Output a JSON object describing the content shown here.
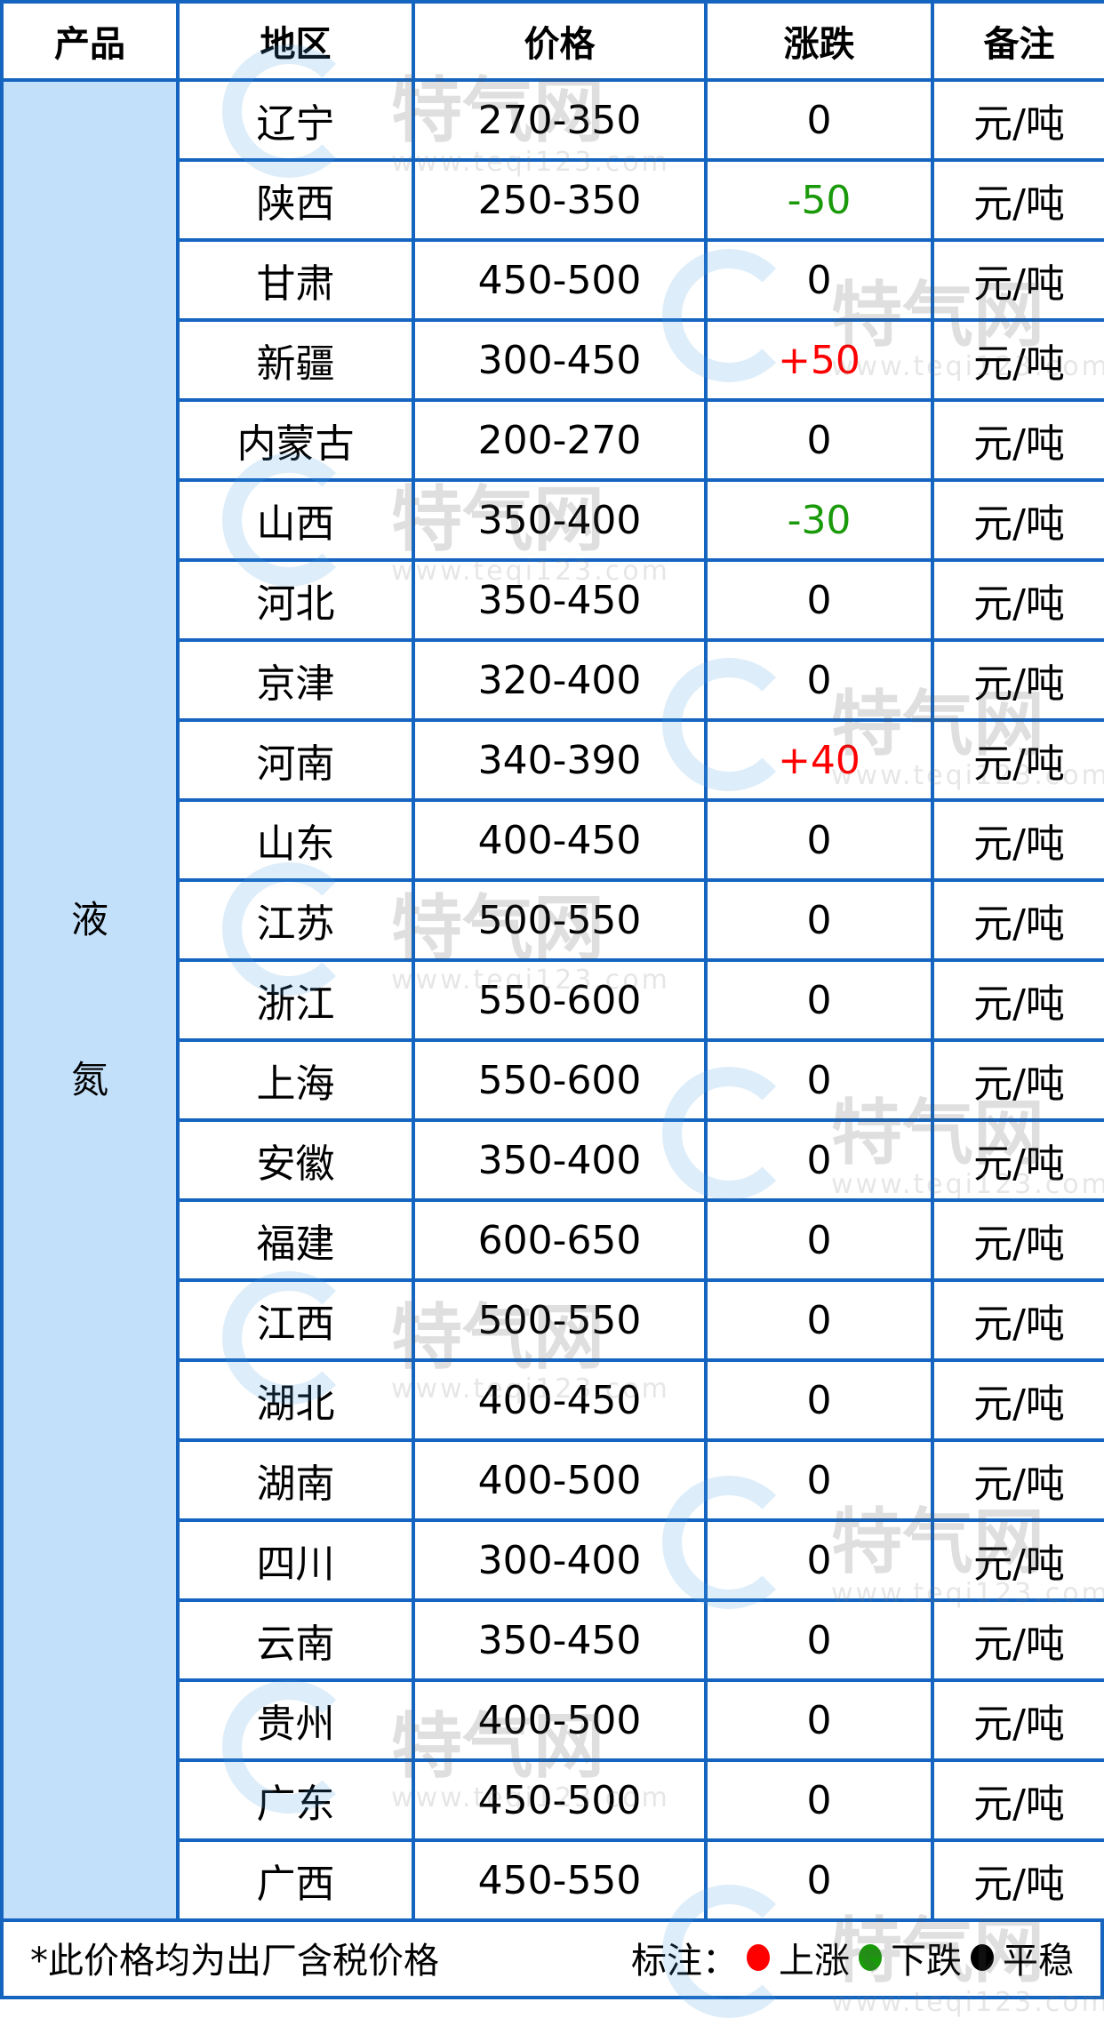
{
  "headers": [
    "产品",
    "地区",
    "价格",
    "涨跌",
    "备注"
  ],
  "product": [
    "液",
    "氮"
  ],
  "rows": [
    {
      "region": "辽宁",
      "price": "270-350",
      "change": "0",
      "note": "元/吨",
      "trend": "flat"
    },
    {
      "region": "陕西",
      "price": "250-350",
      "change": "-50",
      "note": "元/吨",
      "trend": "down"
    },
    {
      "region": "甘肃",
      "price": "450-500",
      "change": "0",
      "note": "元/吨",
      "trend": "flat"
    },
    {
      "region": "新疆",
      "price": "300-450",
      "change": "+50",
      "note": "元/吨",
      "trend": "up"
    },
    {
      "region": "内蒙古",
      "price": "200-270",
      "change": "0",
      "note": "元/吨",
      "trend": "flat"
    },
    {
      "region": "山西",
      "price": "350-400",
      "change": "-30",
      "note": "元/吨",
      "trend": "down"
    },
    {
      "region": "河北",
      "price": "350-450",
      "change": "0",
      "note": "元/吨",
      "trend": "flat"
    },
    {
      "region": "京津",
      "price": "320-400",
      "change": "0",
      "note": "元/吨",
      "trend": "flat"
    },
    {
      "region": "河南",
      "price": "340-390",
      "change": "+40",
      "note": "元/吨",
      "trend": "up"
    },
    {
      "region": "山东",
      "price": "400-450",
      "change": "0",
      "note": "元/吨",
      "trend": "flat"
    },
    {
      "region": "江苏",
      "price": "500-550",
      "change": "0",
      "note": "元/吨",
      "trend": "flat"
    },
    {
      "region": "浙江",
      "price": "550-600",
      "change": "0",
      "note": "元/吨",
      "trend": "flat"
    },
    {
      "region": "上海",
      "price": "550-600",
      "change": "0",
      "note": "元/吨",
      "trend": "flat"
    },
    {
      "region": "安徽",
      "price": "350-400",
      "change": "0",
      "note": "元/吨",
      "trend": "flat"
    },
    {
      "region": "福建",
      "price": "600-650",
      "change": "0",
      "note": "元/吨",
      "trend": "flat"
    },
    {
      "region": "江西",
      "price": "500-550",
      "change": "0",
      "note": "元/吨",
      "trend": "flat"
    },
    {
      "region": "湖北",
      "price": "400-450",
      "change": "0",
      "note": "元/吨",
      "trend": "flat"
    },
    {
      "region": "湖南",
      "price": "400-500",
      "change": "0",
      "note": "元/吨",
      "trend": "flat"
    },
    {
      "region": "四川",
      "price": "300-400",
      "change": "0",
      "note": "元/吨",
      "trend": "flat"
    },
    {
      "region": "云南",
      "price": "350-450",
      "change": "0",
      "note": "元/吨",
      "trend": "flat"
    },
    {
      "region": "贵州",
      "price": "400-500",
      "change": "0",
      "note": "元/吨",
      "trend": "flat"
    },
    {
      "region": "广东",
      "price": "450-500",
      "change": "0",
      "note": "元/吨",
      "trend": "flat"
    },
    {
      "region": "广西",
      "price": "450-550",
      "change": "0",
      "note": "元/吨",
      "trend": "flat"
    }
  ],
  "footer": {
    "note": "*此价格均为出厂含税价格",
    "legend_label": "标注：",
    "legend": [
      {
        "label": "上涨",
        "color": "#ff0000"
      },
      {
        "label": "下跌",
        "color": "#1a9a0a"
      },
      {
        "label": "平稳",
        "color": "#000000"
      }
    ]
  },
  "colors": {
    "border": "#1565c0",
    "product_bg": "#c3e0fa",
    "up": "#ff0000",
    "down": "#1a9a0a"
  },
  "watermark": {
    "name": "特气网",
    "url": "www.teqi123.com"
  }
}
